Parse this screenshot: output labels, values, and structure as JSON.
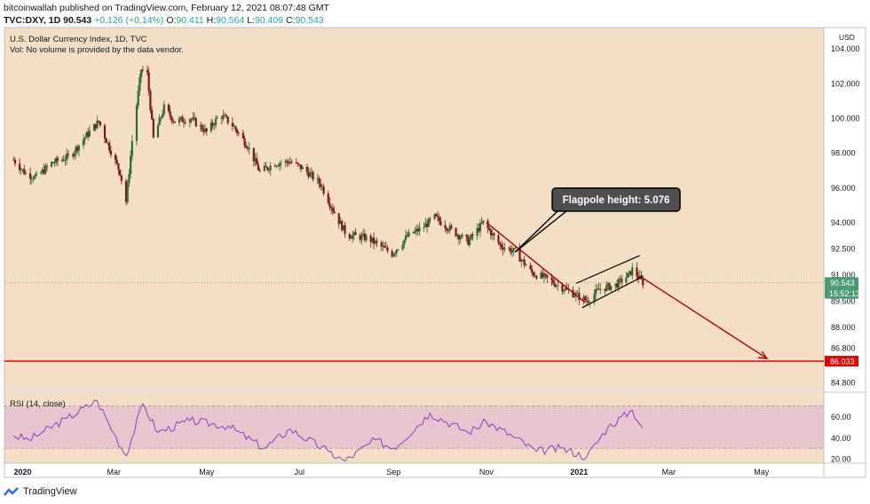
{
  "header": {
    "published": "bitcoinwallah published on TradingView.com, February 12, 2021 08:07:48 GMT",
    "symbol": "TVC:DXY, 1D",
    "last": "90.543",
    "change": "+0.126 (+0.14%)",
    "open_label": "O:",
    "open": "90.411",
    "high_label": "H:",
    "high": "90.564",
    "low_label": "L:",
    "low": "90.409",
    "close_label": "C:",
    "close": "90.543"
  },
  "chart_title": "U.S. Dollar Currency Index, 1D, TVC",
  "vol_note": "Vol: No volume is provided by the data vendor.",
  "footer": {
    "brand": "TradingView"
  },
  "colors": {
    "main_bg": "#f4dfc6",
    "rsi_band": "#e6c5cf",
    "rsi_line": "#8e3fc0",
    "up_candle": "#2d6b34",
    "down_candle": "#7a1b1b",
    "pole": "#b40000",
    "support": "#e60000",
    "price_tag": "#4a9a73"
  },
  "chart_data": [
    {
      "type": "candlestick",
      "title": "U.S. Dollar Currency Index, 1D, TVC",
      "currency": "USD",
      "y_ticks": [
        "104.000",
        "102.000",
        "100.000",
        "98.000",
        "96.000",
        "94.000",
        "92.500",
        "91.000",
        "89.500",
        "88.000",
        "86.800",
        "84.800"
      ],
      "x_ticks": [
        "2020",
        "Mar",
        "May",
        "Jul",
        "Sep",
        "Nov",
        "2021",
        "Mar",
        "May"
      ],
      "ylim": [
        84.3,
        105.2
      ],
      "close_series": [
        {
          "date": "2019-12-26",
          "close": 97.6
        },
        {
          "date": "2020-01-03",
          "close": 96.8
        },
        {
          "date": "2020-01-10",
          "close": 96.6
        },
        {
          "date": "2020-01-20",
          "close": 97.4
        },
        {
          "date": "2020-02-01",
          "close": 97.8
        },
        {
          "date": "2020-02-12",
          "close": 99.0
        },
        {
          "date": "2020-02-20",
          "close": 99.8
        },
        {
          "date": "2020-02-28",
          "close": 98.1
        },
        {
          "date": "2020-03-05",
          "close": 96.9
        },
        {
          "date": "2020-03-09",
          "close": 95.2
        },
        {
          "date": "2020-03-13",
          "close": 98.7
        },
        {
          "date": "2020-03-19",
          "close": 102.8
        },
        {
          "date": "2020-03-23",
          "close": 102.5
        },
        {
          "date": "2020-03-27",
          "close": 98.8
        },
        {
          "date": "2020-04-03",
          "close": 100.6
        },
        {
          "date": "2020-04-10",
          "close": 99.8
        },
        {
          "date": "2020-04-20",
          "close": 100.0
        },
        {
          "date": "2020-05-01",
          "close": 99.2
        },
        {
          "date": "2020-05-10",
          "close": 100.2
        },
        {
          "date": "2020-05-18",
          "close": 99.6
        },
        {
          "date": "2020-05-28",
          "close": 98.4
        },
        {
          "date": "2020-06-05",
          "close": 96.9
        },
        {
          "date": "2020-06-15",
          "close": 97.4
        },
        {
          "date": "2020-06-25",
          "close": 97.5
        },
        {
          "date": "2020-07-05",
          "close": 97.0
        },
        {
          "date": "2020-07-15",
          "close": 96.2
        },
        {
          "date": "2020-07-25",
          "close": 94.4
        },
        {
          "date": "2020-08-01",
          "close": 93.3
        },
        {
          "date": "2020-08-15",
          "close": 93.1
        },
        {
          "date": "2020-08-31",
          "close": 92.2
        },
        {
          "date": "2020-09-10",
          "close": 93.2
        },
        {
          "date": "2020-09-20",
          "close": 93.7
        },
        {
          "date": "2020-09-28",
          "close": 94.3
        },
        {
          "date": "2020-10-10",
          "close": 93.5
        },
        {
          "date": "2020-10-20",
          "close": 92.9
        },
        {
          "date": "2020-10-30",
          "close": 94.0
        },
        {
          "date": "2020-11-10",
          "close": 92.7
        },
        {
          "date": "2020-11-20",
          "close": 92.3
        },
        {
          "date": "2020-12-01",
          "close": 91.1
        },
        {
          "date": "2020-12-10",
          "close": 90.8
        },
        {
          "date": "2020-12-20",
          "close": 90.3
        },
        {
          "date": "2021-01-06",
          "close": 89.5
        },
        {
          "date": "2021-01-15",
          "close": 90.2
        },
        {
          "date": "2021-01-25",
          "close": 90.4
        },
        {
          "date": "2021-02-03",
          "close": 91.0
        },
        {
          "date": "2021-02-05",
          "close": 91.3
        },
        {
          "date": "2021-02-12",
          "close": 90.543
        }
      ],
      "annotations": {
        "flagpole_label": "Flagpole height: 5.076",
        "support_level": "86.033",
        "last_price": "90.543",
        "countdown": "15:52:13"
      }
    },
    {
      "type": "line",
      "title": "RSI (14, close)",
      "y_ticks": [
        "60.00",
        "40.00",
        "20.00"
      ],
      "ylim": [
        16,
        82
      ],
      "overbought": 70,
      "oversold": 30,
      "points": [
        {
          "date": "2019-12-26",
          "rsi": 42
        },
        {
          "date": "2020-01-05",
          "rsi": 38
        },
        {
          "date": "2020-01-15",
          "rsi": 46
        },
        {
          "date": "2020-01-30",
          "rsi": 58
        },
        {
          "date": "2020-02-19",
          "rsi": 75
        },
        {
          "date": "2020-03-01",
          "rsi": 44
        },
        {
          "date": "2020-03-09",
          "rsi": 23
        },
        {
          "date": "2020-03-20",
          "rsi": 72
        },
        {
          "date": "2020-03-30",
          "rsi": 45
        },
        {
          "date": "2020-04-20",
          "rsi": 56
        },
        {
          "date": "2020-05-15",
          "rsi": 51
        },
        {
          "date": "2020-06-08",
          "rsi": 30
        },
        {
          "date": "2020-06-25",
          "rsi": 48
        },
        {
          "date": "2020-07-20",
          "rsi": 27
        },
        {
          "date": "2020-07-31",
          "rsi": 18
        },
        {
          "date": "2020-08-20",
          "rsi": 38
        },
        {
          "date": "2020-09-01",
          "rsi": 30
        },
        {
          "date": "2020-09-25",
          "rsi": 63
        },
        {
          "date": "2020-10-20",
          "rsi": 45
        },
        {
          "date": "2020-11-01",
          "rsi": 55
        },
        {
          "date": "2020-11-20",
          "rsi": 40
        },
        {
          "date": "2020-12-04",
          "rsi": 27
        },
        {
          "date": "2020-12-20",
          "rsi": 30
        },
        {
          "date": "2021-01-06",
          "rsi": 22
        },
        {
          "date": "2021-01-20",
          "rsi": 50
        },
        {
          "date": "2021-02-05",
          "rsi": 66
        },
        {
          "date": "2021-02-12",
          "rsi": 49
        }
      ]
    }
  ]
}
